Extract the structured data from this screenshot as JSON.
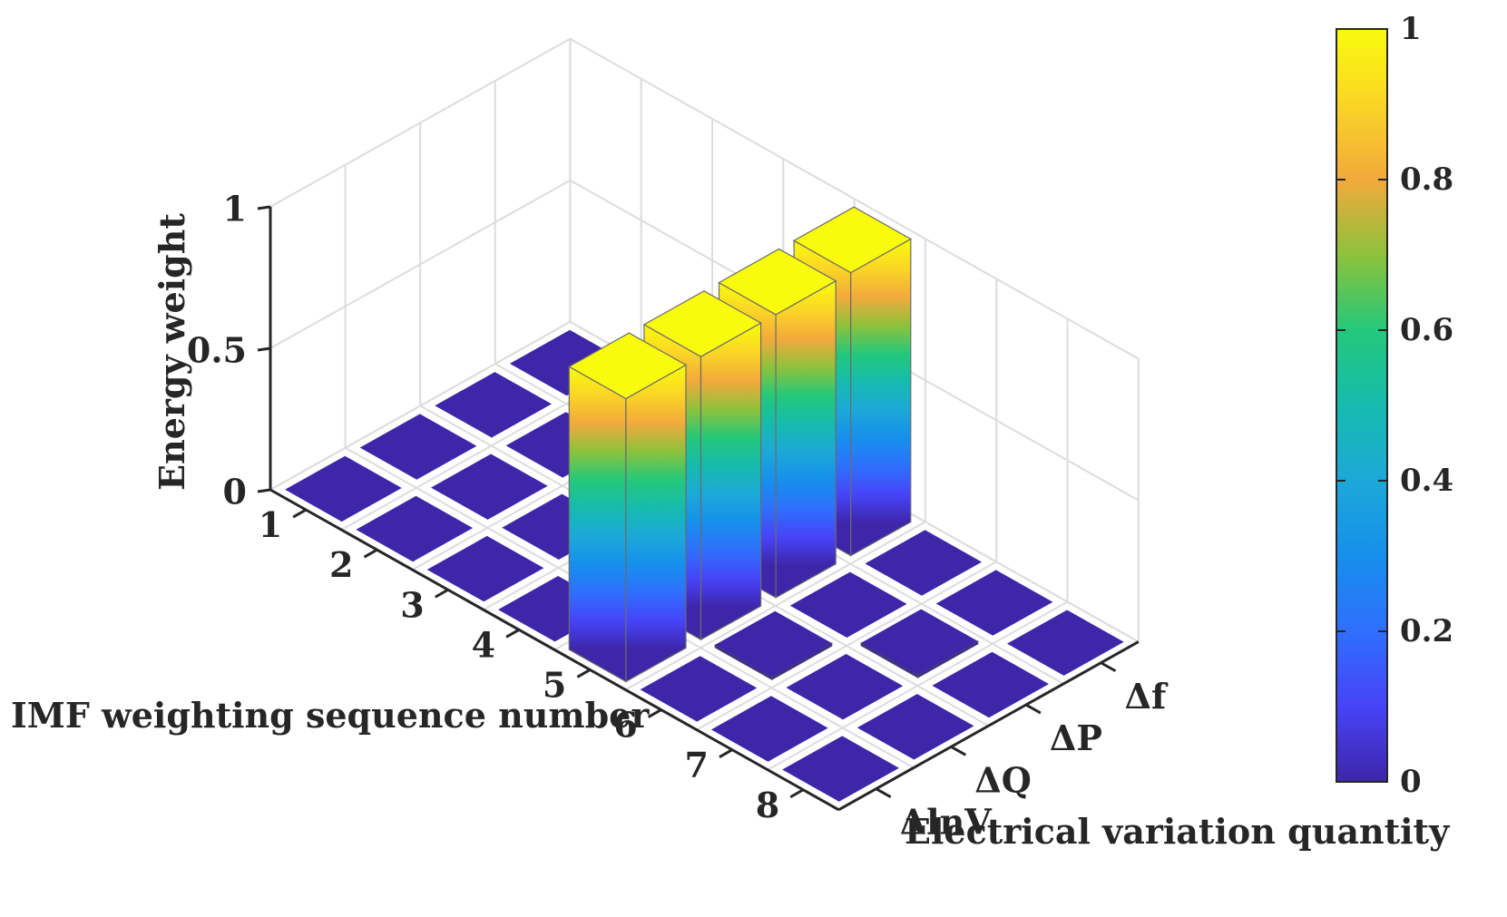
{
  "chart_data": {
    "type": "bar3d",
    "xlabel": "IMF weighting sequence number",
    "ylabel": "Electrical variation quantity",
    "zlabel": "Energy weight",
    "x_categories": [
      "1",
      "2",
      "3",
      "4",
      "5",
      "6",
      "7",
      "8"
    ],
    "y_categories": [
      "ΔlnV",
      "ΔQ",
      "ΔP",
      "Δf"
    ],
    "z_ticks": [
      "0",
      "0.5",
      "1"
    ],
    "zlim": [
      0,
      1
    ],
    "values": [
      [
        0.0,
        0.0,
        0.0,
        0.0
      ],
      [
        0.0,
        0.0,
        0.0,
        0.0
      ],
      [
        0.0,
        0.0,
        0.0,
        0.0
      ],
      [
        0.0,
        0.0,
        0.0,
        0.0
      ],
      [
        1.0,
        1.0,
        1.0,
        1.0
      ],
      [
        0.0,
        0.01,
        0.0,
        0.0
      ],
      [
        0.0,
        0.0,
        0.01,
        0.0
      ],
      [
        0.0,
        0.0,
        0.0,
        0.0
      ]
    ],
    "colorbar": {
      "ticks": [
        "0",
        "0.2",
        "0.4",
        "0.6",
        "0.8",
        "1"
      ],
      "range": [
        0,
        1
      ],
      "colormap": "parula"
    },
    "grid": true
  }
}
